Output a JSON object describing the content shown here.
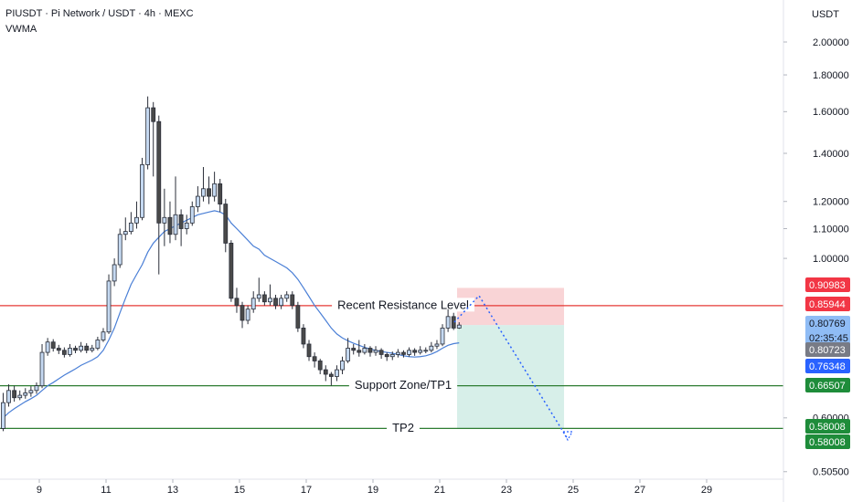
{
  "chart_data": {
    "type": "candlestick",
    "title": "PIUSDT · Pi Network / USDT · 4h · MEXC",
    "y_unit": "USDT",
    "log_scale": true,
    "up_color": "#c5d9f1",
    "down_color": "#4a4a4a",
    "wick_color": "#2a2e39",
    "xlim": [
      7.822,
      31.247
    ],
    "xticks": [
      9,
      11,
      13,
      15,
      17,
      19,
      21,
      23,
      25,
      27,
      29
    ],
    "ylim": [
      0.493,
      2.288
    ],
    "yticks": [
      {
        "value": 2,
        "label": "2.00000"
      },
      {
        "value": 1.8,
        "label": "1.80000"
      },
      {
        "value": 1.6,
        "label": "1.60000"
      },
      {
        "value": 1.4,
        "label": "1.40000"
      },
      {
        "value": 1.2,
        "label": "1.20000"
      },
      {
        "value": 1.1,
        "label": "1.10000"
      },
      {
        "value": 1,
        "label": "1.00000"
      },
      {
        "value": 0.6,
        "label": "0.60000"
      },
      {
        "value": 0.505,
        "label": "0.50500"
      }
    ],
    "x": [
      7.917,
      8.083,
      8.25,
      8.417,
      8.583,
      8.75,
      8.917,
      9.083,
      9.25,
      9.417,
      9.583,
      9.75,
      9.917,
      10.083,
      10.25,
      10.417,
      10.583,
      10.75,
      10.917,
      11.083,
      11.25,
      11.417,
      11.583,
      11.75,
      11.917,
      12.083,
      12.25,
      12.417,
      12.583,
      12.75,
      12.917,
      13.083,
      13.25,
      13.417,
      13.583,
      13.75,
      13.917,
      14.083,
      14.25,
      14.417,
      14.583,
      14.75,
      14.917,
      15.083,
      15.25,
      15.417,
      15.583,
      15.75,
      15.917,
      16.083,
      16.25,
      16.417,
      16.583,
      16.75,
      16.917,
      17.083,
      17.25,
      17.417,
      17.583,
      17.75,
      17.917,
      18.083,
      18.25,
      18.417,
      18.583,
      18.75,
      18.917,
      19.083,
      19.25,
      19.417,
      19.583,
      19.75,
      19.917,
      20.083,
      20.25,
      20.417,
      20.583,
      20.75,
      20.917,
      21.083,
      21.25,
      21.417,
      21.583
    ],
    "open": [
      0.58,
      0.63,
      0.655,
      0.64,
      0.645,
      0.65,
      0.655,
      0.665,
      0.74,
      0.765,
      0.75,
      0.745,
      0.735,
      0.75,
      0.745,
      0.755,
      0.745,
      0.75,
      0.77,
      0.79,
      0.93,
      0.98,
      1.08,
      1.09,
      1.12,
      1.14,
      1.35,
      1.62,
      1.55,
      1.12,
      1.14,
      1.08,
      1.15,
      1.1,
      1.12,
      1.18,
      1.22,
      1.25,
      1.22,
      1.27,
      1.19,
      1.05,
      0.88,
      0.86,
      0.82,
      0.85,
      0.88,
      0.89,
      0.87,
      0.88,
      0.86,
      0.88,
      0.89,
      0.86,
      0.8,
      0.76,
      0.73,
      0.72,
      0.7,
      0.69,
      0.685,
      0.7,
      0.72,
      0.75,
      0.745,
      0.74,
      0.75,
      0.74,
      0.745,
      0.735,
      0.73,
      0.735,
      0.74,
      0.735,
      0.745,
      0.74,
      0.745,
      0.745,
      0.755,
      0.76,
      0.8,
      0.83,
      0.8
    ],
    "high": [
      0.65,
      0.668,
      0.665,
      0.655,
      0.66,
      0.664,
      0.672,
      0.76,
      0.775,
      0.772,
      0.758,
      0.752,
      0.76,
      0.756,
      0.765,
      0.762,
      0.758,
      0.778,
      0.8,
      0.95,
      1.0,
      1.1,
      1.14,
      1.16,
      1.2,
      1.38,
      1.68,
      1.65,
      1.58,
      1.25,
      1.2,
      1.3,
      1.17,
      1.15,
      1.2,
      1.26,
      1.34,
      1.3,
      1.32,
      1.29,
      1.21,
      1.06,
      0.91,
      0.87,
      0.86,
      0.9,
      0.94,
      0.9,
      0.92,
      0.89,
      0.89,
      0.9,
      0.9,
      0.87,
      0.81,
      0.77,
      0.74,
      0.725,
      0.71,
      0.695,
      0.71,
      0.73,
      0.775,
      0.76,
      0.77,
      0.76,
      0.755,
      0.755,
      0.75,
      0.74,
      0.742,
      0.748,
      0.745,
      0.752,
      0.75,
      0.755,
      0.752,
      0.765,
      0.77,
      0.81,
      0.85,
      0.84,
      0.815
    ],
    "low": [
      0.575,
      0.622,
      0.632,
      0.635,
      0.638,
      0.642,
      0.648,
      0.66,
      0.732,
      0.742,
      0.736,
      0.728,
      0.73,
      0.738,
      0.74,
      0.738,
      0.74,
      0.745,
      0.765,
      0.785,
      0.915,
      0.97,
      1.06,
      1.08,
      1.1,
      1.13,
      1.33,
      1.3,
      0.95,
      1.04,
      1.05,
      1.06,
      1.04,
      1.08,
      1.11,
      1.16,
      1.2,
      1.19,
      1.2,
      1.16,
      1.02,
      0.87,
      0.84,
      0.8,
      0.81,
      0.84,
      0.87,
      0.86,
      0.86,
      0.85,
      0.85,
      0.87,
      0.85,
      0.79,
      0.75,
      0.72,
      0.705,
      0.69,
      0.675,
      0.665,
      0.675,
      0.69,
      0.715,
      0.735,
      0.73,
      0.735,
      0.73,
      0.732,
      0.725,
      0.72,
      0.722,
      0.728,
      0.728,
      0.73,
      0.732,
      0.735,
      0.738,
      0.74,
      0.748,
      0.755,
      0.79,
      0.795,
      0.798
    ],
    "close": [
      0.63,
      0.655,
      0.64,
      0.645,
      0.65,
      0.655,
      0.665,
      0.74,
      0.765,
      0.75,
      0.745,
      0.735,
      0.75,
      0.745,
      0.755,
      0.745,
      0.75,
      0.77,
      0.79,
      0.93,
      0.98,
      1.08,
      1.09,
      1.12,
      1.14,
      1.35,
      1.62,
      1.55,
      1.12,
      1.14,
      1.08,
      1.15,
      1.1,
      1.12,
      1.18,
      1.22,
      1.25,
      1.22,
      1.27,
      1.19,
      1.05,
      0.88,
      0.86,
      0.82,
      0.85,
      0.88,
      0.89,
      0.87,
      0.88,
      0.86,
      0.88,
      0.89,
      0.86,
      0.8,
      0.76,
      0.73,
      0.72,
      0.7,
      0.69,
      0.685,
      0.7,
      0.72,
      0.75,
      0.745,
      0.74,
      0.75,
      0.74,
      0.745,
      0.735,
      0.73,
      0.735,
      0.74,
      0.735,
      0.745,
      0.74,
      0.745,
      0.745,
      0.755,
      0.76,
      0.8,
      0.83,
      0.8,
      0.8077
    ],
    "overlays": [
      {
        "name": "VWMA",
        "color": "#4a7fd6",
        "values": [
          0.6,
          0.61,
          0.618,
          0.625,
          0.632,
          0.638,
          0.645,
          0.655,
          0.665,
          0.672,
          0.68,
          0.688,
          0.695,
          0.702,
          0.71,
          0.716,
          0.722,
          0.73,
          0.745,
          0.77,
          0.8,
          0.84,
          0.88,
          0.92,
          0.95,
          0.98,
          1.02,
          1.05,
          1.07,
          1.09,
          1.1,
          1.11,
          1.12,
          1.13,
          1.14,
          1.15,
          1.155,
          1.16,
          1.165,
          1.16,
          1.15,
          1.12,
          1.1,
          1.08,
          1.06,
          1.04,
          1.03,
          1.01,
          1.0,
          0.99,
          0.98,
          0.97,
          0.955,
          0.935,
          0.91,
          0.885,
          0.86,
          0.84,
          0.82,
          0.8,
          0.785,
          0.775,
          0.768,
          0.762,
          0.757,
          0.752,
          0.748,
          0.745,
          0.742,
          0.74,
          0.738,
          0.735,
          0.732,
          0.73,
          0.729,
          0.73,
          0.732,
          0.736,
          0.742,
          0.75,
          0.757,
          0.761,
          0.763
        ]
      }
    ],
    "levels": [
      {
        "label": "Recent Resistance Level",
        "value": 0.85944,
        "color": "#e53935"
      },
      {
        "label": "Support Zone/TP1",
        "value": 0.66507,
        "color": "#2e7d32"
      },
      {
        "label": "TP2",
        "value": 0.58008,
        "color": "#2e7d32"
      }
    ],
    "position": {
      "stop": 0.90983,
      "entry": 0.80769,
      "target": 0.58008,
      "stop_color": "#f8c9cc",
      "target_color": "#cdebe3"
    },
    "price_labels": [
      {
        "value": 0.90983,
        "color": "#f23645"
      },
      {
        "value": 0.85944,
        "color": "#f23645"
      },
      {
        "value": 0.80769,
        "color": "#8fbcf5",
        "countdown": "02:35:45"
      },
      {
        "value": 0.80723,
        "color": "#787b86"
      },
      {
        "value": 0.76348,
        "color": "#2962ff"
      },
      {
        "value": 0.66507,
        "color": "#1e8c3a"
      },
      {
        "value": 0.58008,
        "color": "#1e8c3a"
      },
      {
        "value": 0.58008,
        "color": "#1e8c3a"
      }
    ]
  }
}
